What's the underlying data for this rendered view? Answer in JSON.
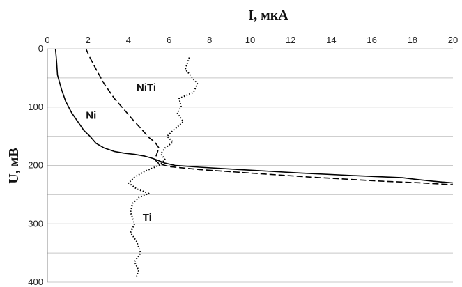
{
  "chart_data": {
    "type": "line",
    "title": "",
    "xlabel": "I, мкА",
    "ylabel": "U, мВ",
    "xlim": [
      0,
      20
    ],
    "ylim": [
      0,
      400
    ],
    "y_inverted": true,
    "x_axis_position": "top",
    "x_ticks": [
      "0",
      "2",
      "4",
      "6",
      "8",
      "10",
      "12",
      "14",
      "16",
      "18",
      "20"
    ],
    "y_ticks": [
      "0",
      "100",
      "200",
      "300",
      "400"
    ],
    "grid": "horizontal",
    "series": [
      {
        "name": "Ni",
        "line_style": "solid",
        "color": "#000000",
        "points": [
          [
            0.4,
            0
          ],
          [
            0.45,
            20
          ],
          [
            0.5,
            45
          ],
          [
            0.7,
            70
          ],
          [
            0.9,
            90
          ],
          [
            1.2,
            110
          ],
          [
            1.5,
            125
          ],
          [
            1.8,
            140
          ],
          [
            2.1,
            150
          ],
          [
            2.4,
            162
          ],
          [
            2.8,
            170
          ],
          [
            3.3,
            176
          ],
          [
            3.8,
            179
          ],
          [
            4.3,
            181
          ],
          [
            4.8,
            184
          ],
          [
            5.2,
            188
          ],
          [
            5.5,
            192
          ],
          [
            5.8,
            196
          ],
          [
            6.3,
            200
          ],
          [
            7.5,
            203
          ],
          [
            9.5,
            207
          ],
          [
            12.5,
            213
          ],
          [
            15.5,
            218
          ],
          [
            17.5,
            221
          ],
          [
            18.2,
            224
          ],
          [
            19.0,
            227
          ],
          [
            20.0,
            230
          ]
        ]
      },
      {
        "name": "NiTi",
        "line_style": "dashed",
        "color": "#000000",
        "points": [
          [
            1.9,
            0
          ],
          [
            2.1,
            15
          ],
          [
            2.4,
            35
          ],
          [
            2.8,
            60
          ],
          [
            3.3,
            85
          ],
          [
            3.8,
            105
          ],
          [
            4.3,
            125
          ],
          [
            4.7,
            140
          ],
          [
            5.0,
            152
          ],
          [
            5.3,
            160
          ],
          [
            5.5,
            170
          ],
          [
            5.4,
            180
          ],
          [
            5.3,
            190
          ],
          [
            5.5,
            197
          ],
          [
            6.0,
            202
          ],
          [
            7.5,
            207
          ],
          [
            10.0,
            213
          ],
          [
            13.0,
            220
          ],
          [
            16.5,
            227
          ],
          [
            18.5,
            230
          ],
          [
            20.0,
            233
          ]
        ]
      },
      {
        "name": "Ti",
        "line_style": "dotted",
        "color": "#000000",
        "points": [
          [
            7.0,
            15
          ],
          [
            6.8,
            35
          ],
          [
            7.4,
            60
          ],
          [
            7.2,
            75
          ],
          [
            6.5,
            85
          ],
          [
            6.6,
            100
          ],
          [
            6.4,
            110
          ],
          [
            6.7,
            125
          ],
          [
            6.2,
            140
          ],
          [
            5.9,
            150
          ],
          [
            6.2,
            160
          ],
          [
            5.8,
            170
          ],
          [
            5.6,
            180
          ],
          [
            5.8,
            190
          ],
          [
            5.5,
            200
          ],
          [
            4.8,
            210
          ],
          [
            4.3,
            220
          ],
          [
            4.0,
            230
          ],
          [
            4.4,
            240
          ],
          [
            5.0,
            248
          ],
          [
            4.5,
            255
          ],
          [
            4.2,
            265
          ],
          [
            4.1,
            280
          ],
          [
            4.3,
            300
          ],
          [
            4.1,
            315
          ],
          [
            4.4,
            330
          ],
          [
            4.6,
            350
          ],
          [
            4.3,
            365
          ],
          [
            4.5,
            380
          ],
          [
            4.4,
            390
          ]
        ]
      }
    ],
    "annotations": [
      {
        "text": "NiTi",
        "x": 4.4,
        "y": 72
      },
      {
        "text": "Ni",
        "x": 1.9,
        "y": 120
      },
      {
        "text": "Ti",
        "x": 4.7,
        "y": 295
      }
    ]
  }
}
